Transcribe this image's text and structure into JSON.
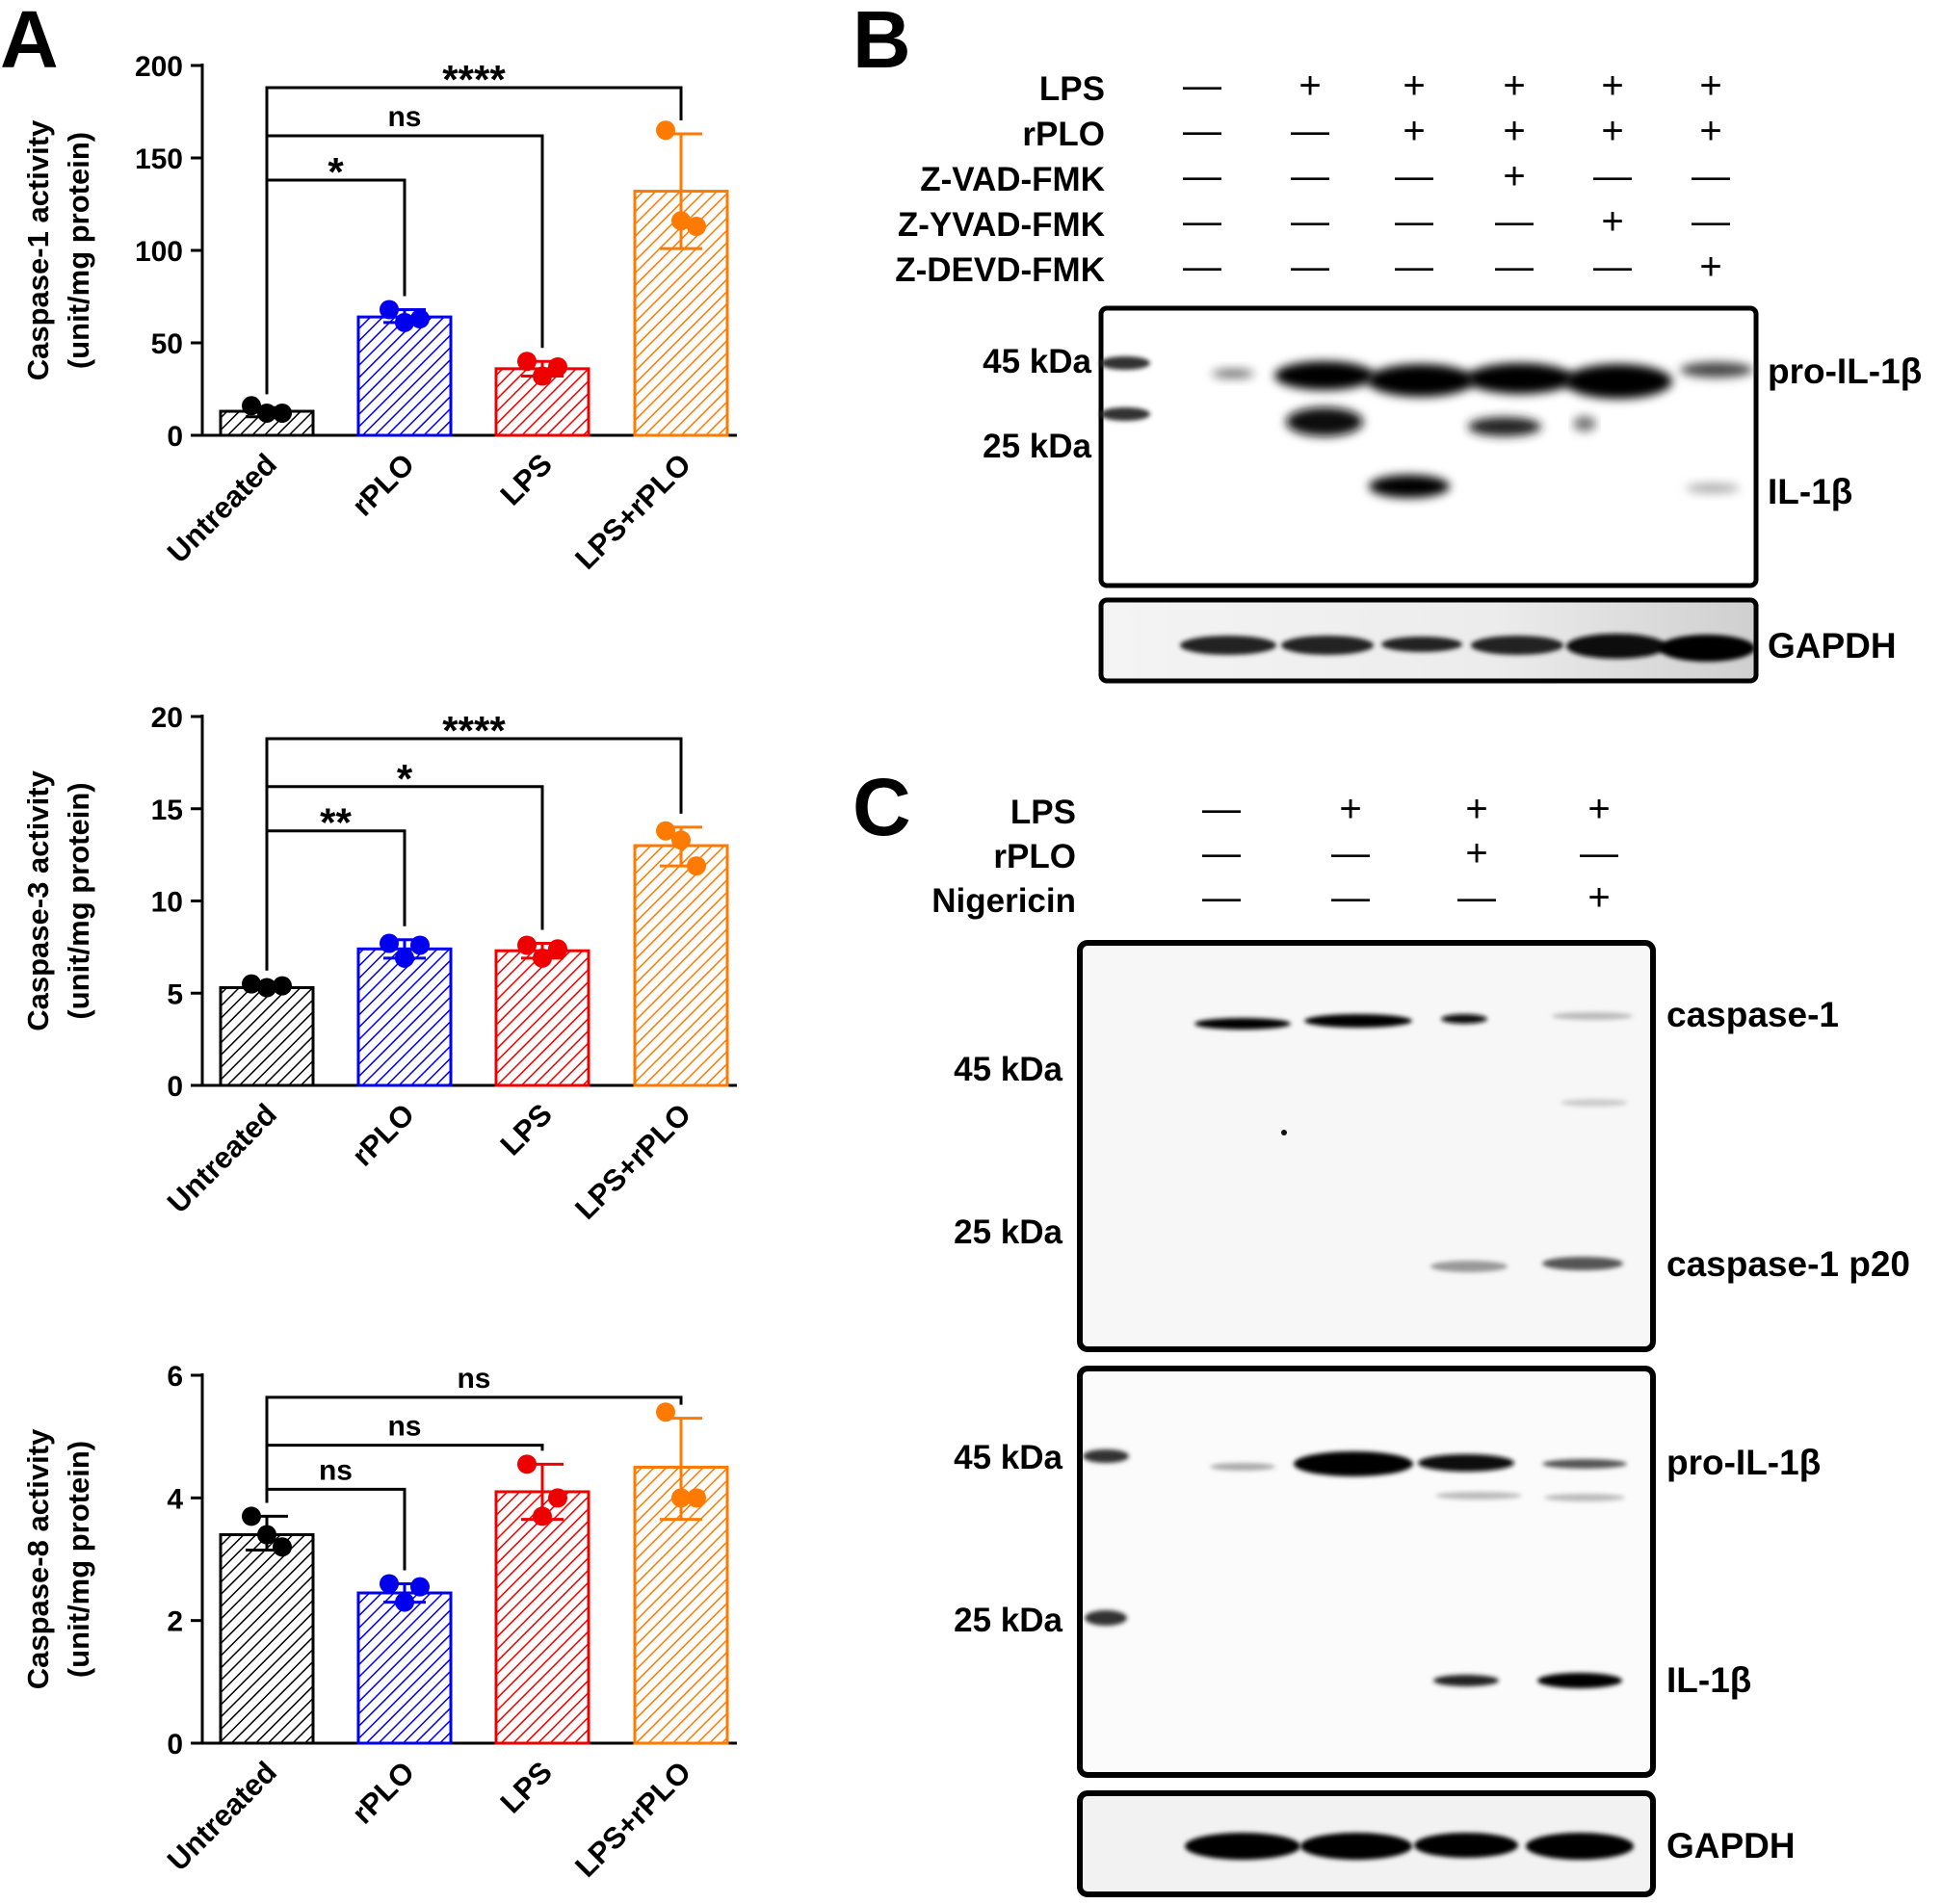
{
  "chart_data": [
    {
      "panel": "A",
      "type": "bar",
      "ylabel": "Caspase-1 activity",
      "ylabel2": "(unit/mg protein)",
      "categories": [
        "Untreated",
        "rPLO",
        "LPS",
        "LPS+rPLO"
      ],
      "values": [
        13,
        64,
        36,
        132
      ],
      "errors": [
        [
          10,
          15
        ],
        [
          61,
          68
        ],
        [
          32,
          40
        ],
        [
          101,
          163
        ]
      ],
      "points": [
        [
          16,
          12,
          12
        ],
        [
          68,
          61,
          63
        ],
        [
          40,
          32,
          37
        ],
        [
          165,
          116,
          113
        ]
      ],
      "ylim": [
        0,
        200
      ],
      "yticks": [
        0,
        50,
        100,
        150,
        200
      ],
      "colors": [
        "#000000",
        "#0000ee",
        "#ee0000",
        "#ff7a00"
      ],
      "comparisons": [
        {
          "from": 0,
          "to": 1,
          "label": "*"
        },
        {
          "from": 0,
          "to": 2,
          "label": "ns"
        },
        {
          "from": 0,
          "to": 3,
          "label": "****"
        }
      ]
    },
    {
      "panel": "",
      "type": "bar",
      "ylabel": "Caspase-3 activity",
      "ylabel2": "(unit/mg protein)",
      "categories": [
        "Untreated",
        "rPLO",
        "LPS",
        "LPS+rPLO"
      ],
      "values": [
        5.3,
        7.4,
        7.3,
        13
      ],
      "errors": [
        [
          5.2,
          5.5
        ],
        [
          6.9,
          7.9
        ],
        [
          6.9,
          7.7
        ],
        [
          11.9,
          14
        ]
      ],
      "points": [
        [
          5.5,
          5.3,
          5.4
        ],
        [
          7.7,
          6.9,
          7.6
        ],
        [
          7.6,
          6.9,
          7.4
        ],
        [
          13.8,
          13.3,
          11.9
        ]
      ],
      "ylim": [
        0,
        20
      ],
      "yticks": [
        0,
        5,
        10,
        15,
        20
      ],
      "colors": [
        "#000000",
        "#0000ee",
        "#ee0000",
        "#ff7a00"
      ],
      "comparisons": [
        {
          "from": 0,
          "to": 1,
          "label": "**"
        },
        {
          "from": 0,
          "to": 2,
          "label": "*"
        },
        {
          "from": 0,
          "to": 3,
          "label": "****"
        }
      ]
    },
    {
      "panel": "",
      "type": "bar",
      "ylabel": "Caspase-8 activity",
      "ylabel2": "(unit/mg protein)",
      "categories": [
        "Untreated",
        "rPLO",
        "LPS",
        "LPS+rPLO"
      ],
      "values": [
        3.4,
        2.45,
        4.1,
        4.5
      ],
      "errors": [
        [
          3.15,
          3.7
        ],
        [
          2.3,
          2.6
        ],
        [
          3.65,
          4.55
        ],
        [
          3.65,
          5.3
        ]
      ],
      "points": [
        [
          3.7,
          3.4,
          3.2
        ],
        [
          2.6,
          2.3,
          2.55
        ],
        [
          4.55,
          3.7,
          4.0
        ],
        [
          5.4,
          4.0,
          4.0
        ]
      ],
      "ylim": [
        0,
        6
      ],
      "yticks": [
        0,
        2,
        4,
        6
      ],
      "colors": [
        "#000000",
        "#0000ee",
        "#ee0000",
        "#ff7a00"
      ],
      "comparisons": [
        {
          "from": 0,
          "to": 1,
          "label": "ns"
        },
        {
          "from": 0,
          "to": 2,
          "label": "ns"
        },
        {
          "from": 0,
          "to": 3,
          "label": "ns"
        }
      ]
    }
  ],
  "panel_b": {
    "letter": "B",
    "treatments": [
      {
        "name": "LPS",
        "signs": [
          "—",
          "+",
          "+",
          "+",
          "+",
          "+"
        ]
      },
      {
        "name": "rPLO",
        "signs": [
          "—",
          "—",
          "+",
          "+",
          "+",
          "+"
        ]
      },
      {
        "name": "Z-VAD-FMK",
        "signs": [
          "—",
          "—",
          "—",
          "+",
          "—",
          "—"
        ]
      },
      {
        "name": "Z-YVAD-FMK",
        "signs": [
          "—",
          "—",
          "—",
          "—",
          "+",
          "—"
        ]
      },
      {
        "name": "Z-DEVD-FMK",
        "signs": [
          "—",
          "—",
          "—",
          "—",
          "—",
          "+"
        ]
      }
    ],
    "markers": [
      "45 kDa",
      "25 kDa"
    ],
    "band_labels": [
      "pro-IL-1β",
      "IL-1β",
      "GAPDH"
    ]
  },
  "panel_c": {
    "letter": "C",
    "treatments": [
      {
        "name": "LPS",
        "signs": [
          "—",
          "+",
          "+",
          "+"
        ]
      },
      {
        "name": "rPLO",
        "signs": [
          "—",
          "—",
          "+",
          "—"
        ]
      },
      {
        "name": "Nigericin",
        "signs": [
          "—",
          "—",
          "—",
          "+"
        ]
      }
    ],
    "markers_top": [
      "45 kDa",
      "25 kDa"
    ],
    "markers_bottom": [
      "45 kDa",
      "25 kDa"
    ],
    "band_labels_top": [
      "caspase-1",
      "caspase-1 p20"
    ],
    "band_labels_bottom": [
      "pro-IL-1β",
      "IL-1β"
    ],
    "band_labels_gapdh": [
      "GAPDH"
    ]
  }
}
